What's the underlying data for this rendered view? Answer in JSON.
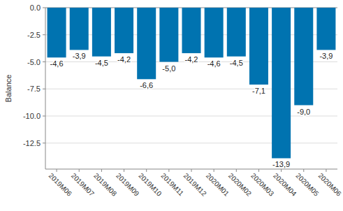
{
  "chart_data": {
    "type": "bar",
    "y_label": "Balance",
    "categories": [
      "2019M06",
      "2019M07",
      "2019M08",
      "2019M09",
      "2019M10",
      "2019M11",
      "2019M12",
      "2020M01",
      "2020M02",
      "2020M03",
      "2020M04",
      "2020M05",
      "2020M06"
    ],
    "values": [
      -4.6,
      -3.9,
      -4.5,
      -4.2,
      -6.6,
      -5.0,
      -4.2,
      -4.6,
      -4.5,
      -7.1,
      -13.9,
      -9.0,
      -3.9
    ],
    "value_labels": [
      "-4,6",
      "-3,9",
      "-4,5",
      "-4,2",
      "-6,6",
      "-5,0",
      "-4,2",
      "-4,6",
      "-4,5",
      "-7,1",
      "-13,9",
      "-9,0",
      "-3,9"
    ],
    "color": "#0073b0",
    "ylim": [
      -14.9,
      0
    ],
    "yticks": [
      {
        "value": 0,
        "label": "0.0"
      },
      -2.5,
      {
        "value": -5,
        "label": "-5.0"
      },
      -7.5,
      {
        "value": -10,
        "label": "-10.0"
      },
      -12.5
    ],
    "grid": true,
    "data_labels": true
  }
}
